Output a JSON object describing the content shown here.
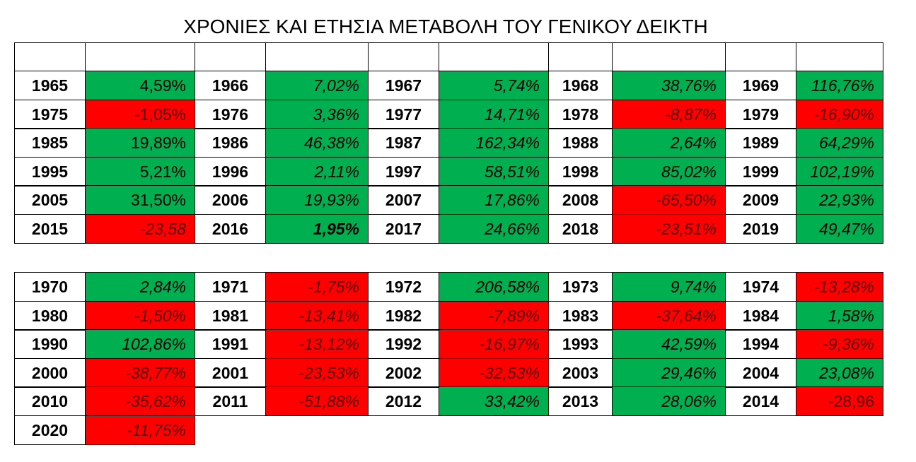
{
  "header": {
    "title": "ΧΡΟΝΙΕΣ ΚΑΙ ΕΤΗΣΙΑ ΜΕΤΑΒΟΛΗ ΤΟΥ ΓΕΝΙΚΟΥ ΔΕΙΚΤΗ"
  },
  "table": {
    "blocks": [
      {
        "rows": [
          [
            {
              "year": "1965",
              "value": "4,59%",
              "color": "#00b050",
              "style": "normal"
            },
            {
              "year": "1966",
              "value": "7,02%",
              "color": "#00b050",
              "style": "italic"
            },
            {
              "year": "1967",
              "value": "5,74%",
              "color": "#00b050",
              "style": "italic"
            },
            {
              "year": "1968",
              "value": "38,76%",
              "color": "#00b050",
              "style": "italic"
            },
            {
              "year": "1969",
              "value": "116,76%",
              "color": "#00b050",
              "style": "italic"
            }
          ],
          [
            {
              "year": "1975",
              "value": "-1,05%",
              "color": "#ff0000",
              "style": "normal"
            },
            {
              "year": "1976",
              "value": "3,36%",
              "color": "#00b050",
              "style": "italic"
            },
            {
              "year": "1977",
              "value": "14,71%",
              "color": "#00b050",
              "style": "italic"
            },
            {
              "year": "1978",
              "value": "-8,87%",
              "color": "#ff0000",
              "style": "italic"
            },
            {
              "year": "1979",
              "value": "-16,90%",
              "color": "#ff0000",
              "style": "italic"
            }
          ],
          [
            {
              "year": "1985",
              "value": "19,89%",
              "color": "#00b050",
              "style": "normal"
            },
            {
              "year": "1986",
              "value": "46,38%",
              "color": "#00b050",
              "style": "italic"
            },
            {
              "year": "1987",
              "value": "162,34%",
              "color": "#00b050",
              "style": "italic"
            },
            {
              "year": "1988",
              "value": "2,64%",
              "color": "#00b050",
              "style": "italic"
            },
            {
              "year": "1989",
              "value": "64,29%",
              "color": "#00b050",
              "style": "italic"
            }
          ],
          [
            {
              "year": "1995",
              "value": "5,21%",
              "color": "#00b050",
              "style": "normal"
            },
            {
              "year": "1996",
              "value": "2,11%",
              "color": "#00b050",
              "style": "italic"
            },
            {
              "year": "1997",
              "value": "58,51%",
              "color": "#00b050",
              "style": "italic"
            },
            {
              "year": "1998",
              "value": "85,02%",
              "color": "#00b050",
              "style": "italic"
            },
            {
              "year": "1999",
              "value": "102,19%",
              "color": "#00b050",
              "style": "italic"
            }
          ],
          [
            {
              "year": "2005",
              "value": "31,50%",
              "color": "#00b050",
              "style": "normal"
            },
            {
              "year": "2006",
              "value": "19,93%",
              "color": "#00b050",
              "style": "italic"
            },
            {
              "year": "2007",
              "value": "17,86%",
              "color": "#00b050",
              "style": "italic"
            },
            {
              "year": "2008",
              "value": "-65,50%",
              "color": "#ff0000",
              "style": "italic"
            },
            {
              "year": "2009",
              "value": "22,93%",
              "color": "#00b050",
              "style": "italic"
            }
          ],
          [
            {
              "year": "2015",
              "value": "-23,58",
              "color": "#ff0000",
              "style": "italic"
            },
            {
              "year": "2016",
              "value": "1,95%",
              "color": "#00b050",
              "style": "bold-italic"
            },
            {
              "year": "2017",
              "value": "24,66%",
              "color": "#00b050",
              "style": "italic"
            },
            {
              "year": "2018",
              "value": "-23,51%",
              "color": "#ff0000",
              "style": "italic"
            },
            {
              "year": "2019",
              "value": "49,47%",
              "color": "#00b050",
              "style": "italic"
            }
          ]
        ]
      },
      {
        "rows": [
          [
            {
              "year": "1970",
              "value": "2,84%",
              "color": "#00b050",
              "style": "italic"
            },
            {
              "year": "1971",
              "value": "-1,75%",
              "color": "#ff0000",
              "style": "italic"
            },
            {
              "year": "1972",
              "value": "206,58%",
              "color": "#00b050",
              "style": "italic"
            },
            {
              "year": "1973",
              "value": "9,74%",
              "color": "#00b050",
              "style": "italic"
            },
            {
              "year": "1974",
              "value": "-13,28%",
              "color": "#ff0000",
              "style": "italic"
            }
          ],
          [
            {
              "year": "1980",
              "value": "-1,50%",
              "color": "#ff0000",
              "style": "italic"
            },
            {
              "year": "1981",
              "value": "-13,41%",
              "color": "#ff0000",
              "style": "italic"
            },
            {
              "year": "1982",
              "value": "-7,89%",
              "color": "#ff0000",
              "style": "italic"
            },
            {
              "year": "1983",
              "value": "-37,64%",
              "color": "#ff0000",
              "style": "italic"
            },
            {
              "year": "1984",
              "value": "1,58%",
              "color": "#00b050",
              "style": "italic"
            }
          ],
          [
            {
              "year": "1990",
              "value": "102,86%",
              "color": "#00b050",
              "style": "italic"
            },
            {
              "year": "1991",
              "value": "-13,12%",
              "color": "#ff0000",
              "style": "italic"
            },
            {
              "year": "1992",
              "value": "-16,97%",
              "color": "#ff0000",
              "style": "italic"
            },
            {
              "year": "1993",
              "value": "42,59%",
              "color": "#00b050",
              "style": "italic"
            },
            {
              "year": "1994",
              "value": "-9,36%",
              "color": "#ff0000",
              "style": "italic"
            }
          ],
          [
            {
              "year": "2000",
              "value": "-38,77%",
              "color": "#ff0000",
              "style": "italic"
            },
            {
              "year": "2001",
              "value": "-23,53%",
              "color": "#ff0000",
              "style": "italic"
            },
            {
              "year": "2002",
              "value": "-32,53%",
              "color": "#ff0000",
              "style": "italic"
            },
            {
              "year": "2003",
              "value": "29,46%",
              "color": "#00b050",
              "style": "italic"
            },
            {
              "year": "2004",
              "value": "23,08%",
              "color": "#00b050",
              "style": "italic"
            }
          ],
          [
            {
              "year": "2010",
              "value": "-35,62%",
              "color": "#ff0000",
              "style": "italic"
            },
            {
              "year": "2011",
              "value": "-51,88%",
              "color": "#ff0000",
              "style": "italic"
            },
            {
              "year": "2012",
              "value": "33,42%",
              "color": "#00b050",
              "style": "italic"
            },
            {
              "year": "2013",
              "value": "28,06%",
              "color": "#00b050",
              "style": "italic"
            },
            {
              "year": "2014",
              "value": "-28,96",
              "color": "#ff0000",
              "style": "normal"
            }
          ],
          [
            {
              "year": "2020",
              "value": "-11,75%",
              "color": "#ff0000",
              "style": "italic"
            }
          ]
        ]
      }
    ]
  }
}
